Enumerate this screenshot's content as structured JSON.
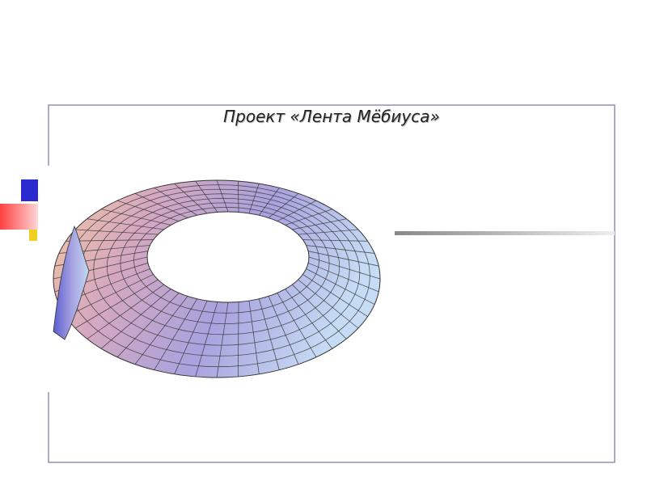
{
  "title": "Проект «Лента Мёбиуса»"
}
